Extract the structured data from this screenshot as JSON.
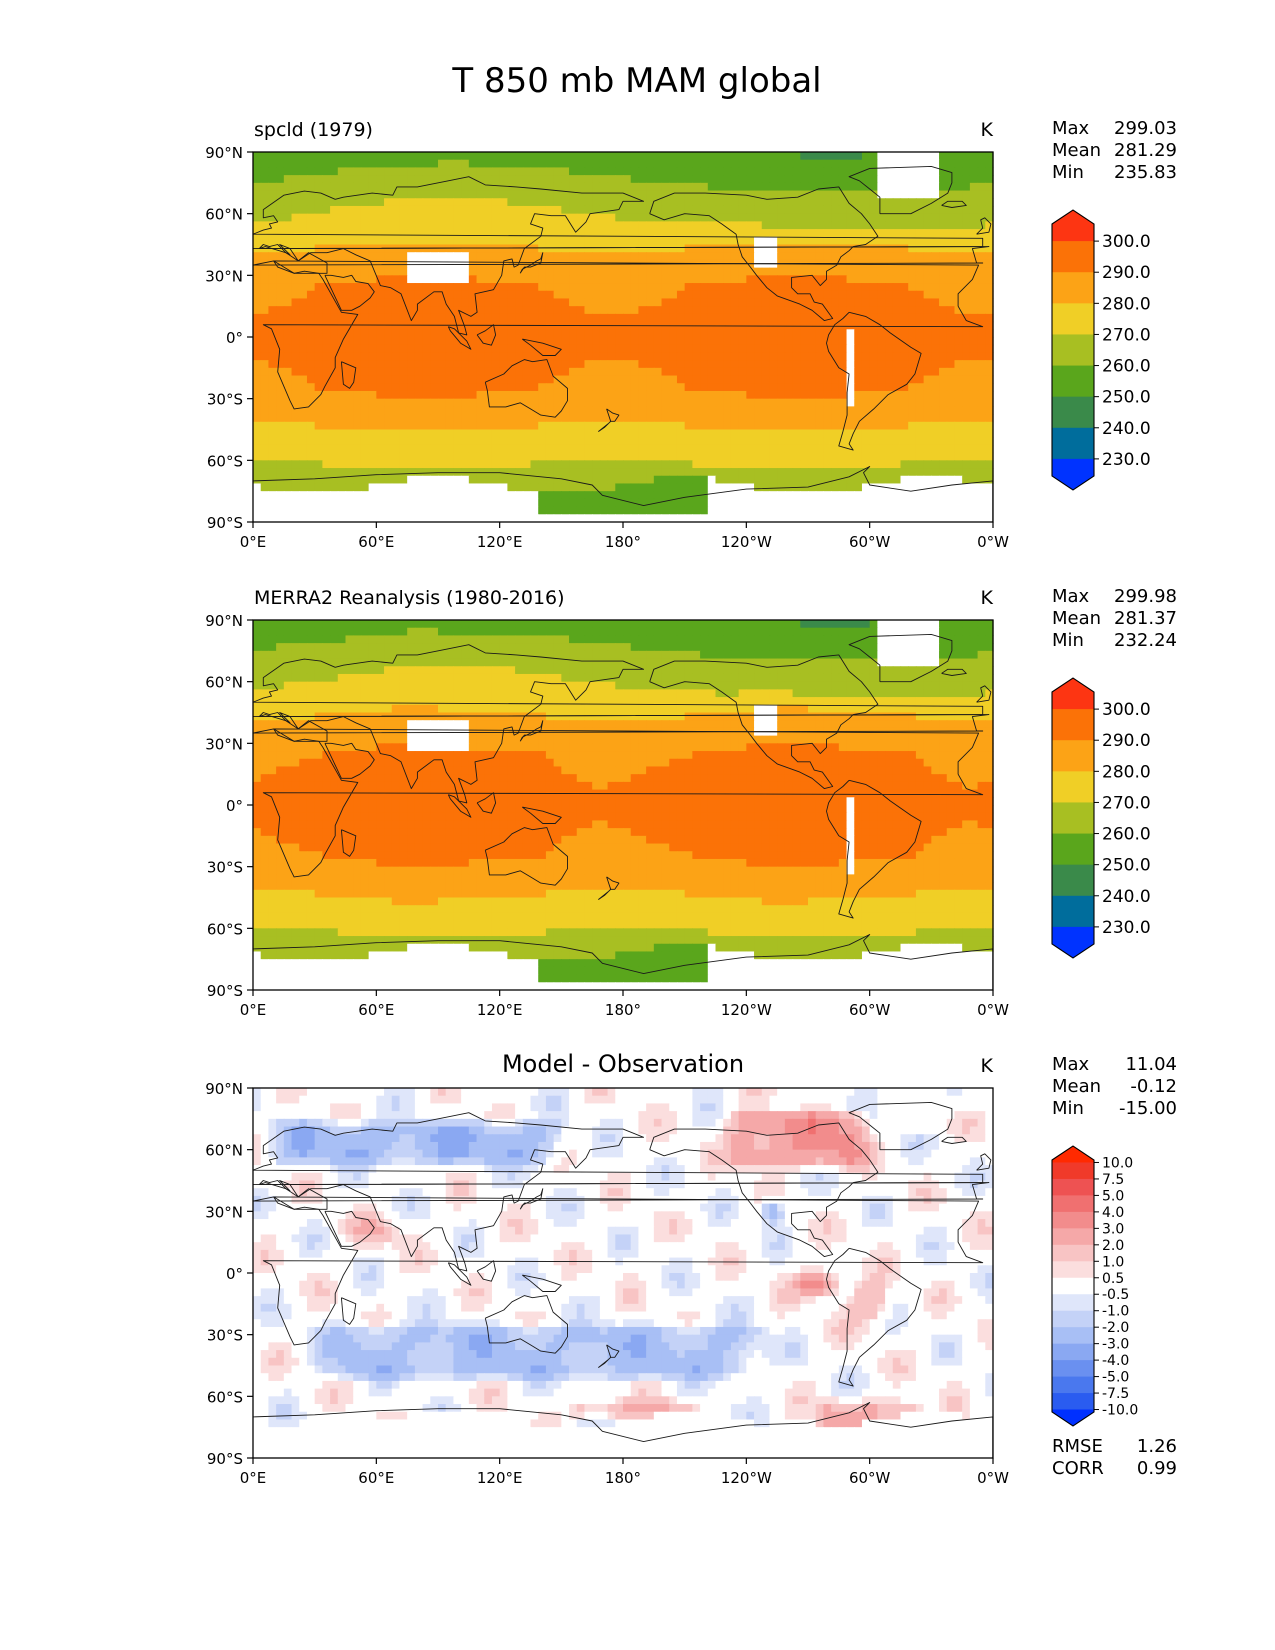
{
  "figure_title": "T 850 mb MAM global",
  "units": "K",
  "colors": {
    "abs_levels": [
      "#0033ff",
      "#006d9c",
      "#3a8a4a",
      "#5aa61c",
      "#a8bf22",
      "#f0cf26",
      "#fca316",
      "#fb7207",
      "#fd3512"
    ],
    "diff_levels": [
      "#0030ff",
      "#2a5cf0",
      "#4a78ee",
      "#6a90f0",
      "#8aa8f2",
      "#a8bff5",
      "#c4d2f7",
      "#dfe6fa",
      "#ffffff",
      "#fbdede",
      "#f8c4c4",
      "#f5a8a8",
      "#f28c8c",
      "#f07070",
      "#ee5252",
      "#f03a2a",
      "#ff2a00"
    ],
    "missing": "#ffffff"
  },
  "chart_data": [
    {
      "type": "heatmap",
      "title": "spcld (1979)",
      "units": "K",
      "stats": [
        {
          "label": "Max",
          "value": "299.03"
        },
        {
          "label": "Mean",
          "value": "281.29"
        },
        {
          "label": "Min",
          "value": "235.83"
        }
      ],
      "colorbar": {
        "scale": "abs",
        "ticks": [
          "300.0",
          "290.0",
          "280.0",
          "270.0",
          "260.0",
          "250.0",
          "240.0",
          "230.0"
        ],
        "extend": "both"
      },
      "xlabels": [
        "0°E",
        "60°E",
        "120°E",
        "180°",
        "120°W",
        "60°W",
        "0°W"
      ],
      "ylabels": [
        "90°N",
        "60°N",
        "30°N",
        "0°",
        "30°S",
        "60°S",
        "90°S"
      ],
      "xlim": [
        0,
        360
      ],
      "ylim": [
        -90,
        90
      ]
    },
    {
      "type": "heatmap",
      "title": "MERRA2 Reanalysis (1980-2016)",
      "units": "K",
      "stats": [
        {
          "label": "Max",
          "value": "299.98"
        },
        {
          "label": "Mean",
          "value": "281.37"
        },
        {
          "label": "Min",
          "value": "232.24"
        }
      ],
      "colorbar": {
        "scale": "abs",
        "ticks": [
          "300.0",
          "290.0",
          "280.0",
          "270.0",
          "260.0",
          "250.0",
          "240.0",
          "230.0"
        ],
        "extend": "both"
      },
      "xlabels": [
        "0°E",
        "60°E",
        "120°E",
        "180°",
        "120°W",
        "60°W",
        "0°W"
      ],
      "ylabels": [
        "90°N",
        "60°N",
        "30°N",
        "0°",
        "30°S",
        "60°S",
        "90°S"
      ],
      "xlim": [
        0,
        360
      ],
      "ylim": [
        -90,
        90
      ]
    },
    {
      "type": "heatmap",
      "title": "Model - Observation",
      "units": "K",
      "stats": [
        {
          "label": "Max",
          "value": "11.04"
        },
        {
          "label": "Mean",
          "value": "-0.12"
        },
        {
          "label": "Min",
          "value": "-15.00"
        }
      ],
      "colorbar": {
        "scale": "diff",
        "ticks": [
          "10.0",
          "7.5",
          "5.0",
          "4.0",
          "3.0",
          "2.0",
          "1.0",
          "0.5",
          "-0.5",
          "-1.0",
          "-2.0",
          "-3.0",
          "-4.0",
          "-5.0",
          "-7.5",
          "-10.0"
        ],
        "extend": "both"
      },
      "metrics": [
        {
          "label": "RMSE",
          "value": "1.26"
        },
        {
          "label": "CORR",
          "value": "0.99"
        }
      ],
      "xlabels": [
        "0°E",
        "60°E",
        "120°E",
        "180°",
        "120°W",
        "60°W",
        "0°W"
      ],
      "ylabels": [
        "90°N",
        "60°N",
        "30°N",
        "0°",
        "30°S",
        "60°S",
        "90°S"
      ],
      "xlim": [
        0,
        360
      ],
      "ylim": [
        -90,
        90
      ]
    }
  ]
}
